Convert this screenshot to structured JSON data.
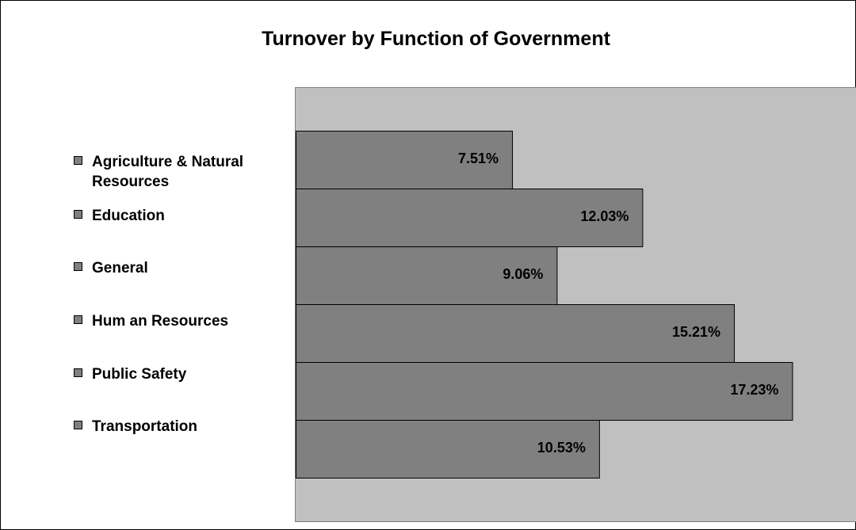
{
  "chart_data": {
    "type": "bar",
    "orientation": "horizontal",
    "title": "Turnover by Function of Government",
    "categories": [
      "Agriculture & Natural Resources",
      "Education",
      "General",
      "Human Resources",
      "Public Safety",
      "Transportation"
    ],
    "legend_labels": [
      [
        "Agriculture & Natural",
        "Resources"
      ],
      [
        "Education"
      ],
      [
        "General"
      ],
      [
        "Hum an Resources"
      ],
      [
        "Public Safety"
      ],
      [
        "Transportation"
      ]
    ],
    "values": [
      7.51,
      12.03,
      9.06,
      15.21,
      17.23,
      10.53
    ],
    "data_labels": [
      "7.51%",
      "12.03%",
      "9.06%",
      "15.21%",
      "17.23%",
      "10.53%"
    ],
    "xlim": [
      0,
      19.5
    ],
    "grid": false,
    "legend_position": "left",
    "colors": {
      "bar_fill": "#808080",
      "bar_stroke": "#000000",
      "plot_background": "#c0c0c0",
      "swatch_fill": "#808080"
    }
  }
}
